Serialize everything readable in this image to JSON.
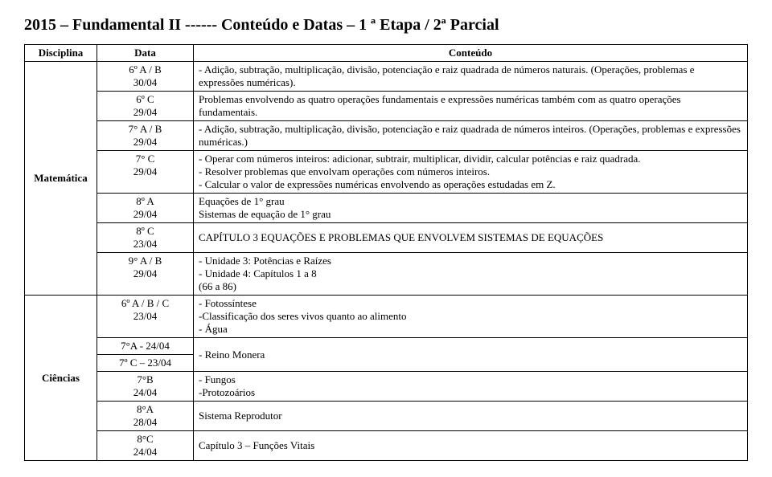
{
  "title": "2015 – Fundamental II ------ Conteúdo e Datas – 1 ª Etapa / 2ª Parcial",
  "headers": {
    "disciplina": "Disciplina",
    "data": "Data",
    "conteudo": "Conteúdo"
  },
  "mat": {
    "name": "Matemática",
    "r1_data": "6º A / B\n30/04",
    "r1_cont": "- Adição, subtração, multiplicação, divisão, potenciação e raiz quadrada de números naturais. (Operações, problemas e expressões numéricas).",
    "r2_data": "6º C\n29/04",
    "r2_cont": "Problemas envolvendo as quatro operações fundamentais e expressões numéricas também com as quatro operações fundamentais.",
    "r3_data": "7° A / B\n29/04",
    "r3_cont": "- Adição, subtração, multiplicação, divisão, potenciação e raiz quadrada de números inteiros. (Operações, problemas e expressões numéricas.)",
    "r4_data": "7° C\n29/04",
    "r4_cont": "- Operar com números inteiros: adicionar, subtrair, multiplicar, dividir, calcular potências e raiz quadrada.\n- Resolver problemas que envolvam operações com números inteiros.\n- Calcular o valor de expressões numéricas envolvendo as operações estudadas em Z.",
    "r5_data": "8º A\n29/04",
    "r5_cont": "Equações de 1° grau\nSistemas de equação de 1° grau",
    "r6_data": "8º C\n23/04",
    "r6_cont": "CAPÍTULO 3 EQUAÇÕES E PROBLEMAS QUE ENVOLVEM SISTEMAS DE EQUAÇÕES",
    "r7_data": "9° A / B\n29/04",
    "r7_cont": "- Unidade 3: Potências e Raízes\n- Unidade 4: Capítulos 1 a 8\n(66 a 86)"
  },
  "cie": {
    "name": "Ciências",
    "r1_data": "6º A / B / C\n23/04",
    "r1_cont": "- Fotossíntese\n-Classificação dos seres vivos quanto ao alimento\n- Água",
    "r2_data": "7°A - 24/04",
    "r3_data": "7º C – 23/04",
    "r23_cont": "- Reino Monera",
    "r4_data": "7°B\n24/04",
    "r4_cont": "- Fungos\n-Protozoários",
    "r5_data": "8°A\n28/04",
    "r5_cont": "Sistema Reprodutor",
    "r6_data": "8°C\n24/04",
    "r6_cont": "Capítulo 3 – Funções Vitais"
  }
}
